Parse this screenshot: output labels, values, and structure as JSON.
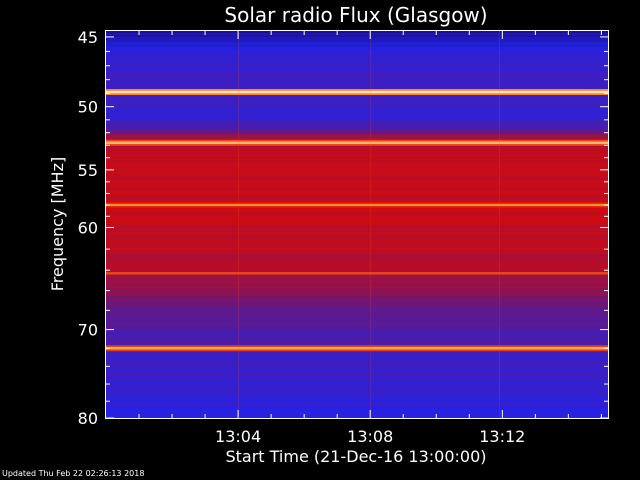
{
  "chart_data": {
    "type": "heatmap",
    "title": "Solar radio Flux (Glasgow)",
    "xlabel": "Start Time (21-Dec-16 13:00:00)",
    "ylabel": "Frequency [MHz]",
    "x_ticks": [
      "13:04",
      "13:08",
      "13:12"
    ],
    "x_tick_minutes": [
      4,
      8,
      12
    ],
    "x_range_minutes": [
      0,
      15.2
    ],
    "y_ticks": [
      45,
      50,
      55,
      60,
      70,
      80
    ],
    "y_scale": "log",
    "y_range": [
      44.6,
      80
    ],
    "y_direction": "top-to-bottom increasing",
    "colormap": "blue-red-yellow-white",
    "colormap_colors": [
      "#1a0c86",
      "#2323ea",
      "#6b1778",
      "#d40a0a",
      "#ff8a28",
      "#fffbe0"
    ],
    "bright_bands_mhz": [
      48.9,
      52.8,
      58.0,
      64.3,
      72.0
    ],
    "background_color": "#000000",
    "text_color": "#ffffff"
  },
  "footer": "Updated Thu Feb 22 02:26:13 2018"
}
